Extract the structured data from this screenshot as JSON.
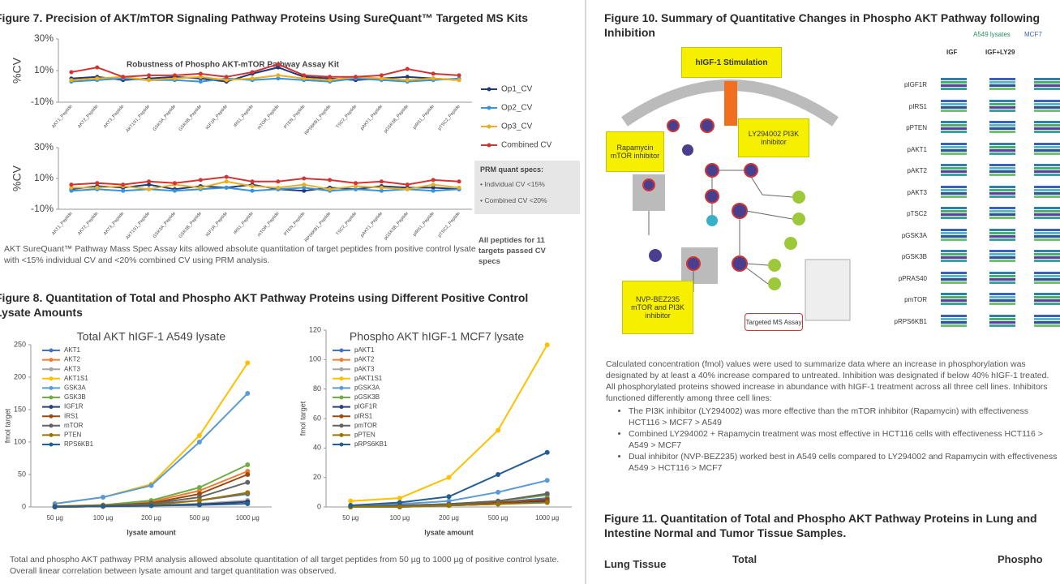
{
  "figure7": {
    "title": "Figure 7. Precision of AKT/mTOR Signaling Pathway Proteins Using SureQuant™ Targeted MS Kits",
    "caption": "AKT SureQuant™ Pathway Mass Spec Assay kits allowed absolute quantitation of target peptides from positive control lysate with <15% individual CV and <20% combined CV using PRM analysis.",
    "note": "All peptides for 11 targets passed CV specs",
    "specs": {
      "title": "PRM quant specs:",
      "items": [
        "Individual CV <15%",
        "Combined CV <20%"
      ]
    }
  },
  "figure8": {
    "title": "Figure 8. Quantitation of Total and Phospho AKT Pathway Proteins using Different Positive Control Lysate Amounts",
    "caption": "Total and phospho AKT pathway PRM analysis allowed absolute quantitation of all target peptides from 50 µg to 1000 µg of positive control lysate. Overall linear correlation between lysate amount and target quantitation was observed."
  },
  "figure10": {
    "title": "Figure 10. Summary of Quantitative Changes in Phospho AKT Pathway following Inhibition",
    "diagram": {
      "stimulation": "hIGF-1 Stimulation",
      "rapamycin": "Rapamycin mTOR inhibitor",
      "ly": "LY294002 PI3K inhibitor",
      "nvp": "NVP-BEZ235 mTOR and PI3K inhibitor",
      "assay": "Targeted MS Assay"
    },
    "heatmap": {
      "legend": [
        "A549 lysates",
        "MCF7"
      ],
      "columns": [
        "IGF",
        "IGF+LY29"
      ],
      "rows": [
        "pIGF1R",
        "pIRS1",
        "pPTEN",
        "pAKT1",
        "pAKT2",
        "pAKT3",
        "pTSC2",
        "pGSK3A",
        "pGSK3B",
        "pPRAS40",
        "pmTOR",
        "pRPS6KB1"
      ]
    },
    "text": "Calculated concentration (fmol) values were used to summarize data where an increase in phosphorylation was designated by at least a 40% increase compared to untreated. Inhibition was designated if below 40% hIGF-1 treated. All phosphorylated proteins showed increase in abundance with hIGF-1 treatment across all three cell lines. Inhibitors functioned differently among three cell lines:",
    "bullets": [
      "The PI3K inhibitor (LY294002) was more effective than the mTOR inhibitor (Rapamycin) with effectiveness HCT116 > MCF7 > A549",
      "Combined LY294002 + Rapamycin treatment was most effective in HCT116 cells with effectiveness HCT116 > A549 > MCF7",
      "Dual inhibitor (NVP-BEZ235) worked best in A549 cells compared to LY294002 and Rapamycin with effectiveness A549 > HCT116 > MCF7"
    ]
  },
  "figure11": {
    "title": "Figure 11. Quantitation of Total and Phospho AKT Pathway Proteins in Lung and Intestine Normal and Tumor Tissue Samples.",
    "labels": [
      "Lung Tissue",
      "Total",
      "Phospho"
    ]
  },
  "chart_data": [
    {
      "type": "line",
      "title": "Robustness of Phospho AKT-mTOR Pathway Assay Kit",
      "ylabel": "%CV",
      "categories": [
        "AKT1_Peptide",
        "AKT2_Peptide",
        "AKT3_Peptide",
        "AKT1S1_Peptide",
        "GSK3A_Peptide",
        "GSK3B_Peptide",
        "IGF1R_Peptide",
        "IRS1_Peptide",
        "mTOR_Peptide",
        "PTEN_Peptide",
        "RPS6KB1_Peptide",
        "TSC2_Peptide",
        "pAKT1_Peptide",
        "pGSK3B_Peptide",
        "pIRS1_Peptide",
        "pTSC2_Peptide"
      ],
      "ylim": [
        -10,
        30
      ],
      "yticks": [
        {
          "value": 30,
          "label": "30%"
        },
        {
          "value": 10,
          "label": "10%"
        },
        {
          "value": -10,
          "label": "-10%"
        }
      ],
      "series": [
        {
          "name": "Op1_CV",
          "color": "#1f3a78",
          "values": [
            5,
            6,
            4,
            5,
            6,
            5,
            3,
            8,
            12,
            6,
            5,
            4,
            5,
            6,
            5,
            4
          ]
        },
        {
          "name": "Op2_CV",
          "color": "#3a93d8",
          "values": [
            3,
            4,
            5,
            4,
            4,
            3,
            5,
            4,
            5,
            4,
            3,
            5,
            4,
            3,
            4,
            5
          ]
        },
        {
          "name": "Op3_CV",
          "color": "#e8b020",
          "values": [
            4,
            5,
            6,
            4,
            5,
            6,
            4,
            5,
            7,
            5,
            4,
            6,
            5,
            4,
            5,
            4
          ]
        },
        {
          "name": "Combined CV",
          "color": "#d03434",
          "values": [
            9,
            12,
            6,
            7,
            7,
            8,
            6,
            9,
            14,
            7,
            6,
            6,
            7,
            11,
            8,
            7
          ]
        }
      ]
    },
    {
      "type": "line",
      "ylabel": "%CV",
      "categories": [
        "AKT1_Peptide",
        "AKT2_Peptide",
        "AKT3_Peptide",
        "AKT1S1_Peptide",
        "GSK3A_Peptide",
        "GSK3B_Peptide",
        "IGF1R_Peptide",
        "IRS1_Peptide",
        "mTOR_Peptide",
        "PTEN_Peptide",
        "RPS6KB1_Peptide",
        "TSC2_Peptide",
        "pAKT1_Peptide",
        "pGSK3B_Peptide",
        "pIRS1_Peptide",
        "pTSC2_Peptide"
      ],
      "ylim": [
        -10,
        30
      ],
      "yticks": [
        {
          "value": 30,
          "label": "30%"
        },
        {
          "value": 10,
          "label": "10%"
        },
        {
          "value": -10,
          "label": "-10%"
        }
      ],
      "series": [
        {
          "color": "#1f3a78",
          "values": [
            3,
            5,
            4,
            6,
            3,
            5,
            4,
            6,
            3,
            2,
            4,
            3,
            5,
            4,
            4,
            3
          ]
        },
        {
          "color": "#3a93d8",
          "values": [
            2,
            3,
            2,
            3,
            2,
            3,
            4,
            2,
            3,
            4,
            2,
            3,
            2,
            3,
            2,
            3
          ]
        },
        {
          "color": "#e8b020",
          "values": [
            4,
            4,
            5,
            3,
            6,
            4,
            8,
            5,
            4,
            6,
            3,
            5,
            4,
            3,
            6,
            4
          ]
        },
        {
          "color": "#d03434",
          "values": [
            6,
            7,
            6,
            8,
            7,
            9,
            11,
            8,
            8,
            10,
            9,
            7,
            8,
            6,
            9,
            8
          ]
        }
      ]
    },
    {
      "type": "line",
      "title": "Total AKT hIGF-1 A549 lysate",
      "xlabel": "lysate amount",
      "ylabel": "fmol target",
      "categories": [
        "50 µg",
        "100 µg",
        "200 µg",
        "500 µg",
        "1000 µg"
      ],
      "ylim": [
        0,
        250
      ],
      "yticks": [
        0,
        50,
        100,
        150,
        200,
        250
      ],
      "series": [
        {
          "name": "AKT1",
          "color": "#4472c4",
          "values": [
            1,
            2,
            4,
            10,
            20
          ]
        },
        {
          "name": "AKT2",
          "color": "#ed7d31",
          "values": [
            1,
            3,
            8,
            25,
            55
          ]
        },
        {
          "name": "AKT3",
          "color": "#a5a5a5",
          "values": [
            0,
            1,
            2,
            5,
            10
          ]
        },
        {
          "name": "AKT1S1",
          "color": "#ffc000",
          "values": [
            5,
            15,
            35,
            110,
            222
          ]
        },
        {
          "name": "GSK3A",
          "color": "#5b9bd5",
          "values": [
            5,
            15,
            33,
            100,
            175
          ]
        },
        {
          "name": "GSK3B",
          "color": "#70ad47",
          "values": [
            1,
            3,
            10,
            30,
            65
          ]
        },
        {
          "name": "IGF1R",
          "color": "#264478",
          "values": [
            0,
            1,
            2,
            4,
            8
          ]
        },
        {
          "name": "IRS1",
          "color": "#9e480e",
          "values": [
            1,
            2,
            6,
            20,
            50
          ]
        },
        {
          "name": "mTOR",
          "color": "#636363",
          "values": [
            0,
            1,
            5,
            15,
            38
          ]
        },
        {
          "name": "PTEN",
          "color": "#997300",
          "values": [
            0,
            1,
            3,
            10,
            22
          ]
        },
        {
          "name": "RPS6KB1",
          "color": "#255e91",
          "values": [
            0,
            1,
            2,
            3,
            5
          ]
        }
      ]
    },
    {
      "type": "line",
      "title": "Phospho AKT hIGF-1 MCF7 lysate",
      "xlabel": "lysate amount",
      "ylabel": "fmol target",
      "categories": [
        "50 µg",
        "100 µg",
        "200 µg",
        "500 µg",
        "1000 µg"
      ],
      "ylim": [
        0,
        120
      ],
      "yticks": [
        0,
        20,
        40,
        60,
        80,
        100,
        120
      ],
      "series": [
        {
          "name": "pAKT1",
          "color": "#4472c4",
          "values": [
            0,
            1,
            1,
            3,
            6
          ]
        },
        {
          "name": "pAKT2",
          "color": "#ed7d31",
          "values": [
            0,
            1,
            1,
            2,
            4
          ]
        },
        {
          "name": "pAKT3",
          "color": "#a5a5a5",
          "values": [
            0,
            0,
            1,
            2,
            3
          ]
        },
        {
          "name": "pAKT1S1",
          "color": "#ffc000",
          "values": [
            4,
            6,
            20,
            52,
            110
          ]
        },
        {
          "name": "pGSK3A",
          "color": "#5b9bd5",
          "values": [
            1,
            2,
            4,
            10,
            18
          ]
        },
        {
          "name": "pGSK3B",
          "color": "#70ad47",
          "values": [
            0,
            1,
            2,
            4,
            8
          ]
        },
        {
          "name": "pIGF1R",
          "color": "#264478",
          "values": [
            0,
            0,
            1,
            2,
            4
          ]
        },
        {
          "name": "pIRS1",
          "color": "#9e480e",
          "values": [
            0,
            1,
            1,
            3,
            5
          ]
        },
        {
          "name": "pmTOR",
          "color": "#636363",
          "values": [
            0,
            1,
            2,
            4,
            9
          ]
        },
        {
          "name": "pPTEN",
          "color": "#997300",
          "values": [
            0,
            0,
            1,
            2,
            3
          ]
        },
        {
          "name": "pRPS6KB1",
          "color": "#255e91",
          "values": [
            1,
            3,
            7,
            22,
            37
          ]
        }
      ]
    }
  ]
}
